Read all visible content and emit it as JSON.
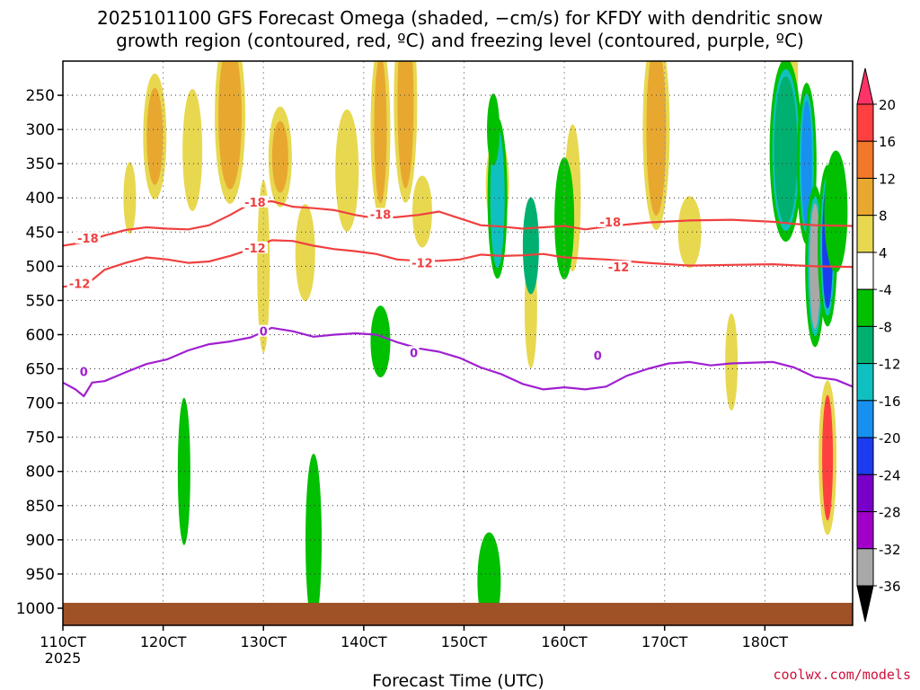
{
  "title_line1": "2025101100 GFS Forecast Omega (shaded, −cm/s) for KFDY with dendritic snow",
  "title_line2": "growth region (contoured, red, ºC) and freezing level (contoured, purple, ºC)",
  "credit": "coolwx.com/models",
  "chart_data": {
    "type": "heatmap",
    "title": "2025101100 GFS Forecast Omega (shaded, −cm/s) for KFDY with dendritic snow growth region (contoured, red, ºC) and freezing level (contoured, purple, ºC)",
    "xlabel": "Forecast Time (UTC)",
    "ylabel": "",
    "x_tick_labels": [
      "110CT",
      "120CT",
      "130CT",
      "140CT",
      "150CT",
      "160CT",
      "170CT",
      "180CT"
    ],
    "x_sublabel": "2025",
    "x_range_hours": [
      0,
      189
    ],
    "y_tick_labels": [
      "250",
      "300",
      "350",
      "400",
      "450",
      "500",
      "550",
      "600",
      "650",
      "700",
      "750",
      "800",
      "850",
      "900",
      "950",
      "1000"
    ],
    "y_ticks_hpa": [
      250,
      300,
      350,
      400,
      450,
      500,
      550,
      600,
      650,
      700,
      750,
      800,
      850,
      900,
      950,
      1000
    ],
    "y_range_hpa": [
      200,
      1025
    ],
    "colorbar": {
      "levels": [
        20,
        16,
        12,
        8,
        4,
        -4,
        -8,
        -12,
        -16,
        -20,
        -24,
        -28,
        -32,
        -36
      ],
      "labels": [
        "20",
        "16",
        "12",
        "8",
        "4",
        "-4",
        "-8",
        "-12",
        "-16",
        "-20",
        "-24",
        "-28",
        "-32",
        "-36"
      ],
      "colors": [
        "#ff3366",
        "#ff4040",
        "#f07828",
        "#e8a830",
        "#e8d850",
        "#ffffff",
        "#00c000",
        "#00b070",
        "#10c0c0",
        "#1890f0",
        "#1c3cf0",
        "#7800c8",
        "#a000c8",
        "#a8a8a8",
        "#000000"
      ]
    },
    "surface_color": "#9e5226",
    "contours": [
      {
        "name": "-18 ºC isotherm",
        "color": "#f04040",
        "label": "-18",
        "points_hour_hpa": [
          [
            0,
            470
          ],
          [
            5,
            465
          ],
          [
            10,
            455
          ],
          [
            15,
            447
          ],
          [
            20,
            443
          ],
          [
            25,
            445
          ],
          [
            30,
            446
          ],
          [
            35,
            440
          ],
          [
            40,
            425
          ],
          [
            45,
            408
          ],
          [
            50,
            405
          ],
          [
            55,
            413
          ],
          [
            60,
            415
          ],
          [
            65,
            418
          ],
          [
            70,
            425
          ],
          [
            75,
            430
          ],
          [
            80,
            428
          ],
          [
            85,
            425
          ],
          [
            90,
            420
          ],
          [
            95,
            430
          ],
          [
            100,
            440
          ],
          [
            105,
            442
          ],
          [
            110,
            445
          ],
          [
            115,
            443
          ],
          [
            120,
            441
          ],
          [
            125,
            446
          ],
          [
            130,
            442
          ],
          [
            140,
            436
          ],
          [
            150,
            433
          ],
          [
            160,
            432
          ],
          [
            170,
            435
          ],
          [
            175,
            438
          ],
          [
            180,
            440
          ],
          [
            189,
            441
          ]
        ],
        "label_positions": [
          [
            6,
            459
          ],
          [
            46,
            406
          ],
          [
            76,
            424
          ],
          [
            131,
            435
          ]
        ]
      },
      {
        "name": "-12 ºC isotherm",
        "color": "#f04040",
        "label": "-12",
        "points_hour_hpa": [
          [
            0,
            530
          ],
          [
            3,
            528
          ],
          [
            7,
            520
          ],
          [
            10,
            505
          ],
          [
            15,
            495
          ],
          [
            20,
            487
          ],
          [
            25,
            490
          ],
          [
            30,
            495
          ],
          [
            35,
            493
          ],
          [
            40,
            485
          ],
          [
            45,
            475
          ],
          [
            50,
            462
          ],
          [
            55,
            463
          ],
          [
            60,
            470
          ],
          [
            65,
            475
          ],
          [
            70,
            478
          ],
          [
            75,
            482
          ],
          [
            80,
            490
          ],
          [
            85,
            492
          ],
          [
            90,
            492
          ],
          [
            95,
            490
          ],
          [
            100,
            483
          ],
          [
            105,
            485
          ],
          [
            110,
            484
          ],
          [
            115,
            482
          ],
          [
            120,
            487
          ],
          [
            130,
            490
          ],
          [
            140,
            495
          ],
          [
            150,
            499
          ],
          [
            160,
            498
          ],
          [
            170,
            497
          ],
          [
            180,
            500
          ],
          [
            189,
            501
          ]
        ],
        "label_positions": [
          [
            4,
            525
          ],
          [
            46,
            473
          ],
          [
            86,
            495
          ],
          [
            133,
            501
          ]
        ]
      },
      {
        "name": "0 ºC freezing level",
        "color": "#a020d0",
        "label": "0",
        "points_hour_hpa": [
          [
            0,
            670
          ],
          [
            3,
            680
          ],
          [
            5,
            690
          ],
          [
            7,
            670
          ],
          [
            10,
            668
          ],
          [
            15,
            655
          ],
          [
            20,
            643
          ],
          [
            25,
            636
          ],
          [
            30,
            623
          ],
          [
            35,
            614
          ],
          [
            40,
            610
          ],
          [
            45,
            604
          ],
          [
            50,
            590
          ],
          [
            55,
            595
          ],
          [
            60,
            603
          ],
          [
            65,
            600
          ],
          [
            70,
            598
          ],
          [
            75,
            600
          ],
          [
            80,
            611
          ],
          [
            85,
            620
          ],
          [
            90,
            625
          ],
          [
            95,
            634
          ],
          [
            100,
            648
          ],
          [
            105,
            658
          ],
          [
            110,
            672
          ],
          [
            115,
            680
          ],
          [
            120,
            677
          ],
          [
            125,
            680
          ],
          [
            130,
            676
          ],
          [
            135,
            660
          ],
          [
            140,
            650
          ],
          [
            145,
            642
          ],
          [
            150,
            640
          ],
          [
            155,
            645
          ],
          [
            160,
            642
          ],
          [
            170,
            640
          ],
          [
            175,
            648
          ],
          [
            180,
            662
          ],
          [
            185,
            666
          ],
          [
            189,
            676
          ]
        ],
        "label_positions": [
          [
            5,
            654
          ],
          [
            48,
            595
          ],
          [
            84,
            626
          ],
          [
            128,
            630
          ]
        ]
      }
    ],
    "omega_blobs": [
      {
        "hour": 16,
        "hpa": 400,
        "value": 6
      },
      {
        "hour": 22,
        "hpa": 310,
        "value": 9
      },
      {
        "hour": 31,
        "hpa": 330,
        "value": 6
      },
      {
        "hour": 40,
        "hpa": 280,
        "value": 10
      },
      {
        "hour": 48,
        "hpa": 500,
        "value": 6
      },
      {
        "hour": 52,
        "hpa": 340,
        "value": 8
      },
      {
        "hour": 58,
        "hpa": 480,
        "value": 5
      },
      {
        "hour": 68,
        "hpa": 360,
        "value": 6
      },
      {
        "hour": 76,
        "hpa": 300,
        "value": 9
      },
      {
        "hour": 82,
        "hpa": 260,
        "value": 10
      },
      {
        "hour": 86,
        "hpa": 420,
        "value": 5
      },
      {
        "hour": 104,
        "hpa": 380,
        "value": 6
      },
      {
        "hour": 112,
        "hpa": 560,
        "value": 5
      },
      {
        "hour": 122,
        "hpa": 400,
        "value": 6
      },
      {
        "hour": 142,
        "hpa": 300,
        "value": 9
      },
      {
        "hour": 150,
        "hpa": 450,
        "value": 5
      },
      {
        "hour": 160,
        "hpa": 640,
        "value": 6
      },
      {
        "hour": 174,
        "hpa": 220,
        "value": 6
      },
      {
        "hour": 183,
        "hpa": 780,
        "value": 18
      },
      {
        "hour": 104,
        "hpa": 400,
        "value": -14
      },
      {
        "hour": 103,
        "hpa": 300,
        "value": -8
      },
      {
        "hour": 112,
        "hpa": 470,
        "value": -10
      },
      {
        "hour": 120,
        "hpa": 430,
        "value": -8
      },
      {
        "hour": 173,
        "hpa": 330,
        "value": -12
      },
      {
        "hour": 178,
        "hpa": 350,
        "value": -20
      },
      {
        "hour": 180,
        "hpa": 500,
        "value": -34
      },
      {
        "hour": 183,
        "hpa": 470,
        "value": -24
      },
      {
        "hour": 185,
        "hpa": 420,
        "value": -8
      },
      {
        "hour": 29,
        "hpa": 800,
        "value": -8
      },
      {
        "hour": 60,
        "hpa": 900,
        "value": -8
      },
      {
        "hour": 76,
        "hpa": 610,
        "value": -8
      },
      {
        "hour": 102,
        "hpa": 960,
        "value": -8
      }
    ]
  }
}
